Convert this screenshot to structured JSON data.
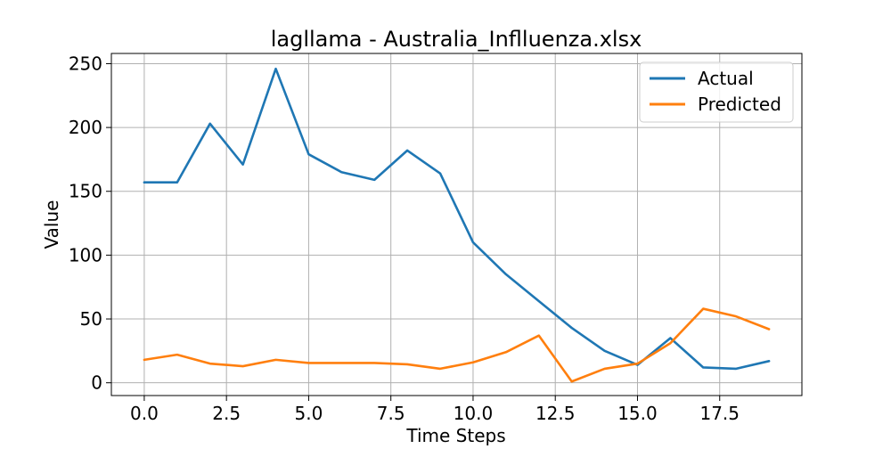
{
  "chart_data": {
    "type": "line",
    "title": "lagllama - Australia_Inflluenza.xlsx",
    "xlabel": "Time Steps",
    "ylabel": "Value",
    "xlim": [
      -1,
      20
    ],
    "ylim": [
      -10,
      258
    ],
    "xticks": [
      0.0,
      2.5,
      5.0,
      7.5,
      10.0,
      12.5,
      15.0,
      17.5
    ],
    "xtick_labels": [
      "0.0",
      "2.5",
      "5.0",
      "7.5",
      "10.0",
      "12.5",
      "15.0",
      "17.5"
    ],
    "yticks": [
      0,
      50,
      100,
      150,
      200,
      250
    ],
    "ytick_labels": [
      "0",
      "50",
      "100",
      "150",
      "200",
      "250"
    ],
    "grid": true,
    "legend_position": "top-right",
    "x": [
      0,
      1,
      2,
      3,
      4,
      5,
      6,
      7,
      8,
      9,
      10,
      11,
      12,
      13,
      14,
      15,
      16,
      17,
      18,
      19
    ],
    "series": [
      {
        "name": "Actual",
        "color": "#1f77b4",
        "values": [
          157,
          157,
          203,
          171,
          246,
          179,
          165,
          159,
          182,
          164,
          110,
          85,
          64,
          43,
          25,
          14,
          35,
          12,
          11,
          17
        ]
      },
      {
        "name": "Predicted",
        "color": "#ff7f0e",
        "values": [
          18,
          22,
          15,
          13,
          18,
          15.5,
          15.5,
          15.5,
          14.5,
          11,
          16,
          24,
          37,
          1,
          11,
          15,
          31,
          58,
          52,
          42
        ]
      }
    ]
  }
}
